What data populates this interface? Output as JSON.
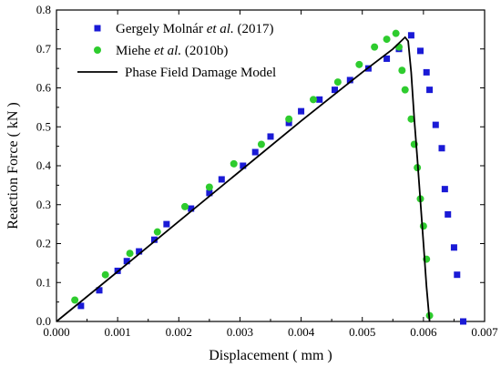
{
  "chart_data": {
    "type": "scatter",
    "xlabel": "Displacement ( mm )",
    "ylabel": "Reaction Force ( kN )",
    "xlim": [
      0.0,
      0.007
    ],
    "ylim": [
      0.0,
      0.8
    ],
    "x_ticks": [
      "0.000",
      "0.001",
      "0.002",
      "0.003",
      "0.004",
      "0.005",
      "0.006",
      "0.007"
    ],
    "y_ticks": [
      "0.0",
      "0.1",
      "0.2",
      "0.3",
      "0.4",
      "0.5",
      "0.6",
      "0.7",
      "0.8"
    ],
    "grid": false,
    "legend_position": "top-left",
    "series": [
      {
        "name": "Gergely Molnár et al. (2017)",
        "legend_parts": [
          {
            "text": "Gergely Molnár ",
            "italic": false
          },
          {
            "text": "et al.",
            "italic": true
          },
          {
            "text": " (2017)",
            "italic": false
          }
        ],
        "marker": "square",
        "color": "#1a1ad6",
        "x": [
          0.0004,
          0.0007,
          0.001,
          0.00115,
          0.00135,
          0.0016,
          0.0018,
          0.0022,
          0.0025,
          0.0027,
          0.00305,
          0.00325,
          0.0035,
          0.0038,
          0.004,
          0.0043,
          0.00455,
          0.0048,
          0.0051,
          0.0054,
          0.0056,
          0.0058,
          0.00595,
          0.00605,
          0.0061,
          0.0062,
          0.0063,
          0.00635,
          0.0064,
          0.0065,
          0.00655,
          0.00665
        ],
        "y": [
          0.04,
          0.08,
          0.13,
          0.155,
          0.18,
          0.21,
          0.25,
          0.29,
          0.33,
          0.365,
          0.4,
          0.435,
          0.475,
          0.51,
          0.54,
          0.57,
          0.595,
          0.62,
          0.65,
          0.675,
          0.7,
          0.735,
          0.695,
          0.64,
          0.595,
          0.505,
          0.445,
          0.34,
          0.275,
          0.19,
          0.12,
          0.0
        ]
      },
      {
        "name": "Miehe et al. (2010b)",
        "legend_parts": [
          {
            "text": "Miehe ",
            "italic": false
          },
          {
            "text": "et al.",
            "italic": true
          },
          {
            "text": " (2010b)",
            "italic": false
          }
        ],
        "marker": "circle",
        "color": "#2ecc2e",
        "x": [
          0.0003,
          0.0008,
          0.0012,
          0.00165,
          0.0021,
          0.0025,
          0.0029,
          0.00335,
          0.0038,
          0.0042,
          0.0046,
          0.00495,
          0.0052,
          0.0054,
          0.00555,
          0.0056,
          0.00565,
          0.0057,
          0.0058,
          0.00585,
          0.0059,
          0.00595,
          0.006,
          0.00605,
          0.0061
        ],
        "y": [
          0.055,
          0.12,
          0.175,
          0.23,
          0.295,
          0.345,
          0.405,
          0.455,
          0.52,
          0.57,
          0.615,
          0.66,
          0.705,
          0.725,
          0.74,
          0.705,
          0.645,
          0.595,
          0.52,
          0.455,
          0.395,
          0.315,
          0.245,
          0.16,
          0.015
        ]
      },
      {
        "name": "Phase Field Damage Model",
        "marker": "line",
        "color": "#000000",
        "x": [
          0.0,
          0.001,
          0.002,
          0.003,
          0.004,
          0.005,
          0.0055,
          0.0057,
          0.00575,
          0.0058,
          0.00585,
          0.0059,
          0.00595,
          0.006,
          0.00605,
          0.0061
        ],
        "y": [
          0.0,
          0.128,
          0.257,
          0.386,
          0.515,
          0.64,
          0.7,
          0.73,
          0.72,
          0.64,
          0.52,
          0.42,
          0.31,
          0.2,
          0.09,
          0.0
        ]
      }
    ]
  }
}
